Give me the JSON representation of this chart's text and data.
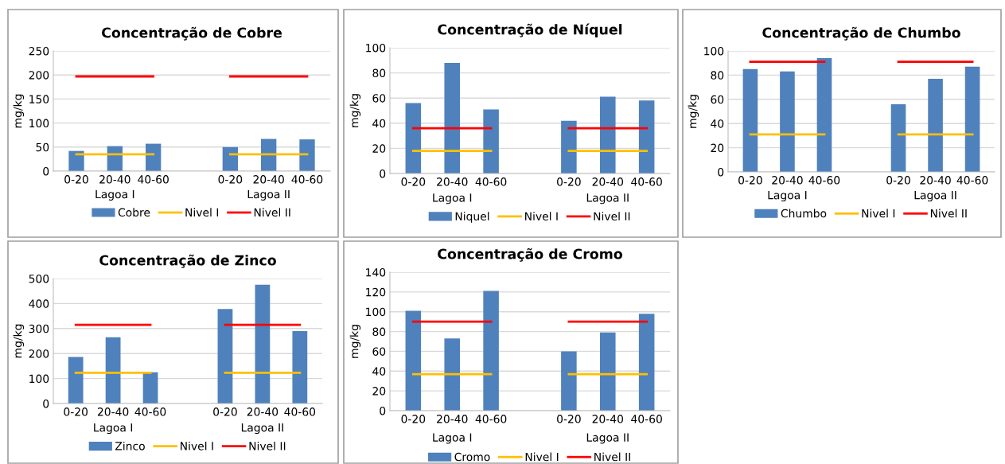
{
  "chart_data": [
    {
      "type": "bar",
      "title": "Concentração de Cobre",
      "ylabel": "mg/kg",
      "categories": [
        "0-20",
        "20-40",
        "40-60",
        null,
        "0-20",
        "20-40",
        "40-60"
      ],
      "annotations": [
        "Lagoa I",
        "Lagoa II"
      ],
      "ylim": [
        0,
        250
      ],
      "yticks": [
        0,
        50,
        100,
        150,
        200,
        250
      ],
      "grid": "y",
      "legend": "bottom",
      "marker": "none",
      "series": [
        {
          "name": "Cobre",
          "color": "#4f81bd",
          "values": [
            42,
            52,
            57,
            null,
            50,
            67,
            66
          ]
        },
        {
          "name": "Nivel I",
          "type": "line",
          "color": "#ffc000",
          "values": [
            35,
            35,
            35,
            null,
            35,
            35,
            35
          ]
        },
        {
          "name": "Nivel II",
          "type": "line",
          "color": "#ff0000",
          "values": [
            197,
            197,
            197,
            null,
            197,
            197,
            197
          ]
        }
      ]
    },
    {
      "type": "bar",
      "title": "Concentração de Níquel",
      "ylabel": "mg/kg",
      "categories": [
        "0-20",
        "20-40",
        "40-60",
        null,
        "0-20",
        "20-40",
        "40-60"
      ],
      "annotations": [
        "Lagoa I",
        "Lagoa II"
      ],
      "ylim": [
        0,
        100
      ],
      "yticks": [
        0,
        20,
        40,
        60,
        80,
        100
      ],
      "grid": "y",
      "legend": "bottom",
      "marker": "none",
      "series": [
        {
          "name": "Niquel",
          "color": "#4f81bd",
          "values": [
            56,
            88,
            51,
            null,
            42,
            61,
            58
          ]
        },
        {
          "name": "Nivel I",
          "type": "line",
          "color": "#ffc000",
          "values": [
            18,
            18,
            18,
            null,
            18,
            18,
            18
          ]
        },
        {
          "name": "Nivel II",
          "type": "line",
          "color": "#ff0000",
          "values": [
            36,
            36,
            36,
            null,
            36,
            36,
            36
          ]
        }
      ]
    },
    {
      "type": "bar",
      "title": "Concentração de Chumbo",
      "ylabel": "mg/kg",
      "categories": [
        "0-20",
        "20-40",
        "40-60",
        null,
        "0-20",
        "20-40",
        "40-60"
      ],
      "annotations": [
        "Lagoa I",
        "Lagoa II"
      ],
      "ylim": [
        0,
        100
      ],
      "yticks": [
        0,
        20,
        40,
        60,
        80,
        100
      ],
      "grid": "y",
      "legend": "bottom",
      "marker": "none",
      "series": [
        {
          "name": "Chumbo",
          "color": "#4f81bd",
          "values": [
            85,
            83,
            94,
            null,
            56,
            77,
            87
          ]
        },
        {
          "name": "Nivel I",
          "type": "line",
          "color": "#ffc000",
          "values": [
            31,
            31,
            31,
            null,
            31,
            31,
            31
          ]
        },
        {
          "name": "Nivel II",
          "type": "line",
          "color": "#ff0000",
          "values": [
            91,
            91,
            91,
            null,
            91,
            91,
            91
          ]
        }
      ]
    },
    {
      "type": "bar",
      "title": "Concentração de Zinco",
      "ylabel": "mg/kg",
      "categories": [
        "0-20",
        "20-40",
        "40-60",
        null,
        "0-20",
        "20-40",
        "40-60"
      ],
      "annotations": [
        "Lagoa I",
        "Lagoa II"
      ],
      "ylim": [
        0,
        500
      ],
      "yticks": [
        0,
        100,
        200,
        300,
        400,
        500
      ],
      "grid": "y",
      "legend": "bottom",
      "marker": "none",
      "series": [
        {
          "name": "Zinco",
          "color": "#4f81bd",
          "values": [
            186,
            265,
            125,
            null,
            378,
            475,
            290
          ]
        },
        {
          "name": "Nivel I",
          "type": "line",
          "color": "#ffc000",
          "values": [
            123,
            123,
            123,
            null,
            123,
            123,
            123
          ]
        },
        {
          "name": "Nivel II",
          "type": "line",
          "color": "#ff0000",
          "values": [
            315,
            315,
            315,
            null,
            315,
            315,
            315
          ]
        }
      ]
    },
    {
      "type": "bar",
      "title": "Concentração de Cromo",
      "ylabel": "mg/kg",
      "categories": [
        "0-20",
        "20-40",
        "40-60",
        null,
        "0-20",
        "20-40",
        "40-60"
      ],
      "annotations": [
        "Lagoa I",
        "Lagoa II"
      ],
      "ylim": [
        0,
        140
      ],
      "yticks": [
        0,
        20,
        40,
        60,
        80,
        100,
        120,
        140
      ],
      "grid": "y",
      "legend": "bottom",
      "marker": "none",
      "series": [
        {
          "name": "Cromo",
          "color": "#4f81bd",
          "values": [
            101,
            73,
            121,
            null,
            60,
            79,
            98
          ]
        },
        {
          "name": "Nivel I",
          "type": "line",
          "color": "#ffc000",
          "values": [
            37,
            37,
            37,
            null,
            37,
            37,
            37
          ]
        },
        {
          "name": "Nivel II",
          "type": "line",
          "color": "#ff0000",
          "values": [
            90,
            90,
            90,
            null,
            90,
            90,
            90
          ]
        }
      ]
    }
  ]
}
